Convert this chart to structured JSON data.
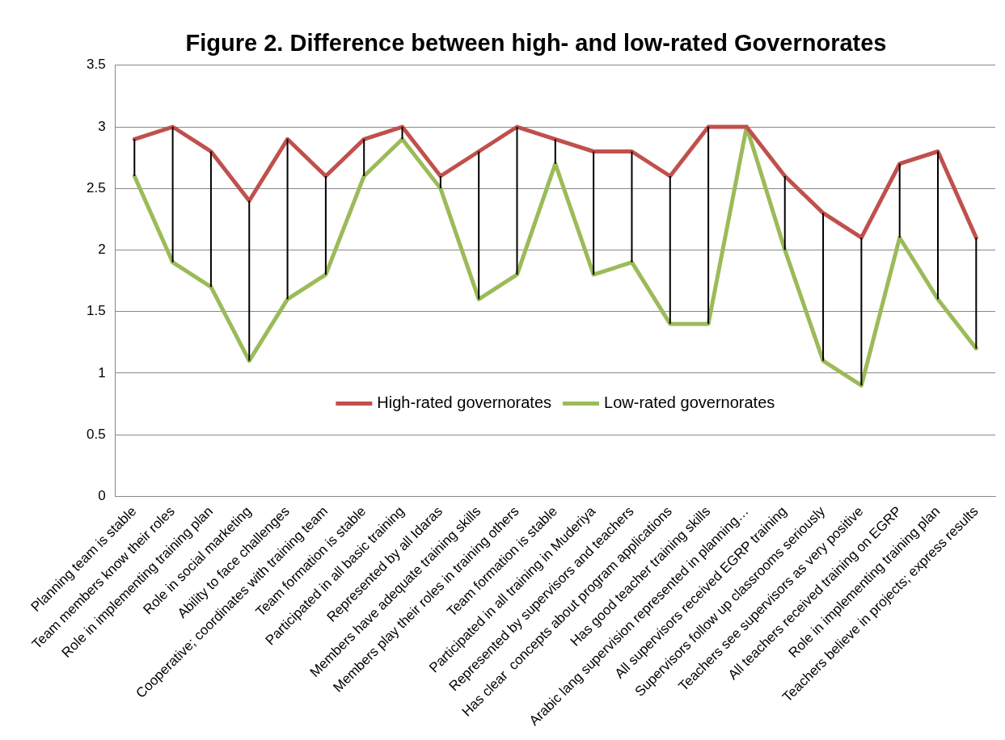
{
  "chart_data": {
    "type": "line",
    "title": "Figure 2. Difference between high- and low-rated Governorates",
    "categories": [
      "Planning team is stable",
      "Team members know their roles",
      "Role in implementing training plan",
      "Role in social marketing",
      "Ability to face challenges",
      "Cooperative; coordinates with training team",
      "Team formation is stable",
      "Participated in all basic training",
      "Represented by all Idaras",
      "Members have adequate training skills",
      "Members play their roles in training others",
      "Team formation is stable",
      "Participated in all training in Muderiya",
      "Represented by supervisors and teachers",
      "Has clear  concepts about program applications",
      "Has good teacher training skills",
      "Arabic lang supervision represented in planning…",
      "All supervisors received EGRP training",
      "Supervisors follow up classrooms seriously",
      "Teachers see supervisors as very positive",
      "All teachers received training on EGRP",
      "Role in implementing training plan",
      "Teachers believe in projects; express results"
    ],
    "series": [
      {
        "name": "High-rated governorates",
        "color": "#c0504d",
        "values": [
          2.9,
          3.0,
          2.8,
          2.4,
          2.9,
          2.6,
          2.9,
          3.0,
          2.6,
          2.8,
          3.0,
          2.9,
          2.8,
          2.8,
          2.6,
          3.0,
          3.0,
          2.6,
          2.3,
          2.1,
          2.7,
          2.8,
          2.1
        ]
      },
      {
        "name": "Low-rated governorates",
        "color": "#9bbb59",
        "values": [
          2.6,
          1.9,
          1.7,
          1.1,
          1.6,
          1.8,
          2.6,
          2.9,
          2.5,
          1.6,
          1.8,
          2.7,
          1.8,
          1.9,
          1.4,
          1.4,
          3.0,
          2.0,
          1.1,
          0.9,
          2.1,
          1.6,
          1.2
        ],
        "errors": [
          [
            2.6,
            2.9
          ],
          [
            1.9,
            3.0
          ],
          [
            1.7,
            2.8
          ],
          [
            1.1,
            2.4
          ],
          [
            1.6,
            2.9
          ],
          [
            1.8,
            2.6
          ],
          [
            2.6,
            2.9
          ],
          [
            2.9,
            3.0
          ],
          [
            2.5,
            2.6
          ],
          [
            1.6,
            2.8
          ],
          [
            1.8,
            3.0
          ],
          [
            2.7,
            2.9
          ],
          [
            1.8,
            2.8
          ],
          [
            1.9,
            2.8
          ],
          [
            1.4,
            2.6
          ],
          [
            1.4,
            3.0
          ],
          null,
          [
            2.0,
            2.6
          ],
          [
            1.1,
            2.3
          ],
          [
            0.9,
            2.1
          ],
          [
            2.1,
            2.7
          ],
          [
            1.6,
            2.8
          ],
          [
            1.2,
            2.1
          ]
        ]
      }
    ],
    "ylim": [
      0,
      3.5
    ],
    "yticks": [
      0,
      0.5,
      1,
      1.5,
      2,
      2.5,
      3,
      3.5
    ],
    "grid": "y",
    "legend": "center",
    "marker": "none",
    "line_style": "solid"
  }
}
